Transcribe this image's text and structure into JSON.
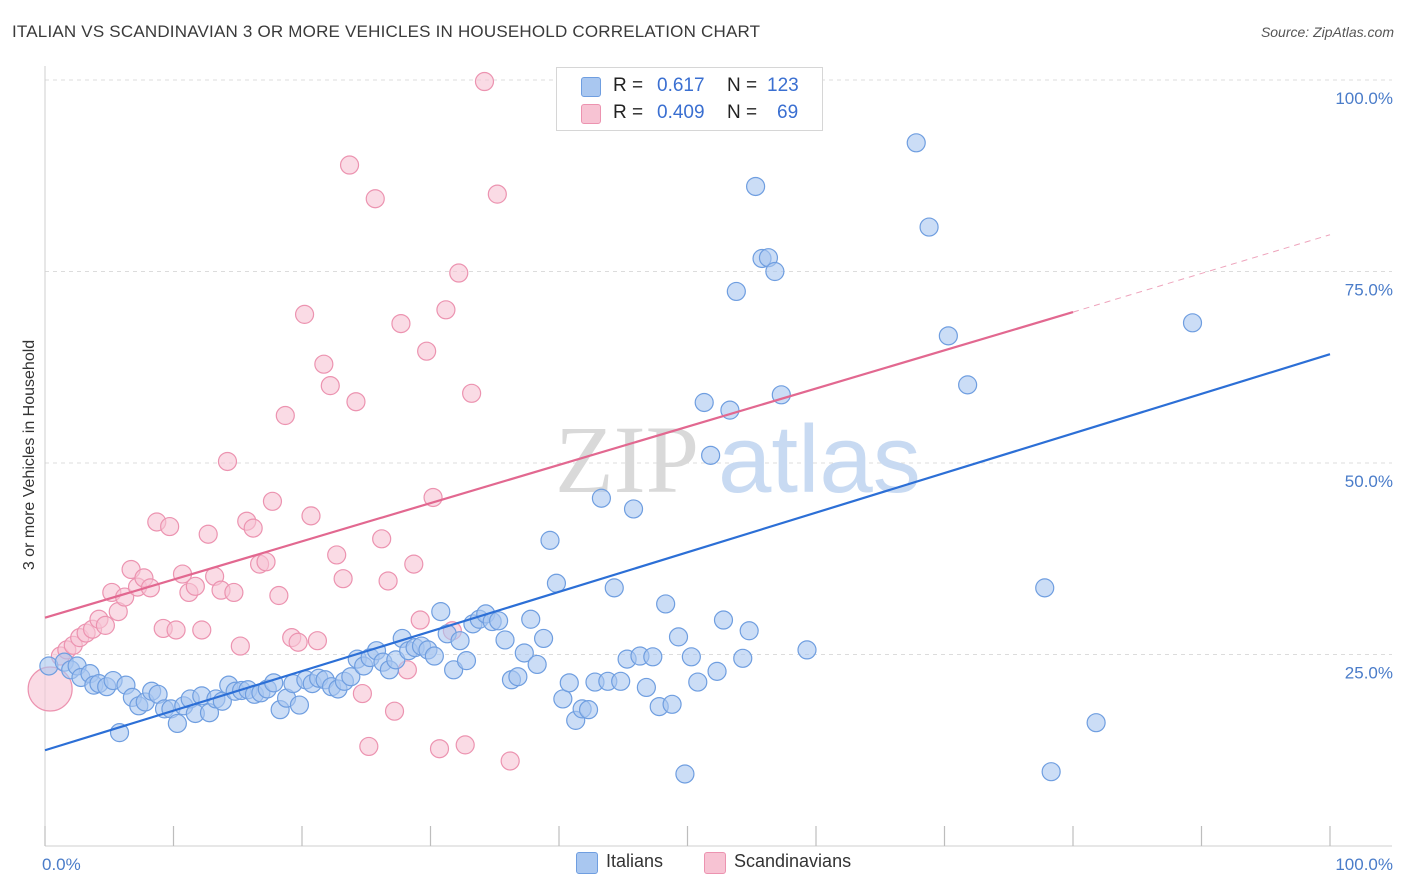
{
  "title": "ITALIAN VS SCANDINAVIAN 3 OR MORE VEHICLES IN HOUSEHOLD CORRELATION CHART",
  "source": "Source: ZipAtlas.com",
  "watermark": {
    "zip": "ZIP",
    "atlas": "atlas"
  },
  "legend": {
    "italians": {
      "r_label": "R =",
      "r_value": "0.617",
      "n_label": "N =",
      "n_value": "123"
    },
    "scandinavians": {
      "r_label": "R =",
      "r_value": "0.409",
      "n_label": "N =",
      "n_value": "69"
    }
  },
  "colors": {
    "italians_fill": "#a9c7f0",
    "italians_stroke": "#6f9ee0",
    "italians_line": "#2c6fd6",
    "scandinavians_fill": "#f7c3d3",
    "scandinavians_stroke": "#ec93b0",
    "scandinavians_line": "#e26890",
    "tick_color": "#4a7cc9",
    "grid": "#dcdcdc"
  },
  "chart_data": {
    "type": "scatter",
    "title": "ITALIAN VS SCANDINAVIAN 3 OR MORE VEHICLES IN HOUSEHOLD CORRELATION CHART",
    "xlabel": "",
    "ylabel": "3 or more Vehicles in Household",
    "xlim": [
      0,
      100
    ],
    "ylim": [
      0,
      100
    ],
    "x_tick_labels": [
      "0.0%",
      "100.0%"
    ],
    "y_ticks": [
      25,
      50,
      75,
      100
    ],
    "y_tick_labels": [
      "25.0%",
      "50.0%",
      "75.0%",
      "100.0%"
    ],
    "grid": true,
    "legend_position": "top-center",
    "series": [
      {
        "name": "Italians",
        "trend": {
          "x": [
            0,
            100
          ],
          "y": [
            12.5,
            64.2
          ]
        },
        "points": [
          [
            0.3,
            23.5
          ],
          [
            1.5,
            24.0
          ],
          [
            2.0,
            23.0
          ],
          [
            2.5,
            23.5
          ],
          [
            2.8,
            22.0
          ],
          [
            3.5,
            22.5
          ],
          [
            3.8,
            21.0
          ],
          [
            4.2,
            21.2
          ],
          [
            4.8,
            20.8
          ],
          [
            5.3,
            21.6
          ],
          [
            5.8,
            14.8
          ],
          [
            6.3,
            21.0
          ],
          [
            6.8,
            19.4
          ],
          [
            7.3,
            18.3
          ],
          [
            7.8,
            18.8
          ],
          [
            8.3,
            20.2
          ],
          [
            8.8,
            19.8
          ],
          [
            9.3,
            17.9
          ],
          [
            9.8,
            17.9
          ],
          [
            10.3,
            16.0
          ],
          [
            10.8,
            18.3
          ],
          [
            11.3,
            19.2
          ],
          [
            11.7,
            17.3
          ],
          [
            12.2,
            19.6
          ],
          [
            12.8,
            17.4
          ],
          [
            13.3,
            19.2
          ],
          [
            13.8,
            18.9
          ],
          [
            14.3,
            21.0
          ],
          [
            14.8,
            20.2
          ],
          [
            15.3,
            20.3
          ],
          [
            15.8,
            20.4
          ],
          [
            16.3,
            19.8
          ],
          [
            16.8,
            20.0
          ],
          [
            17.3,
            20.5
          ],
          [
            17.8,
            21.3
          ],
          [
            18.3,
            17.8
          ],
          [
            18.8,
            19.3
          ],
          [
            19.3,
            21.2
          ],
          [
            19.8,
            18.4
          ],
          [
            20.3,
            21.7
          ],
          [
            20.8,
            21.2
          ],
          [
            21.3,
            21.9
          ],
          [
            21.8,
            21.7
          ],
          [
            22.3,
            20.8
          ],
          [
            22.8,
            20.5
          ],
          [
            23.3,
            21.5
          ],
          [
            23.8,
            22.1
          ],
          [
            24.3,
            24.4
          ],
          [
            24.8,
            23.5
          ],
          [
            25.3,
            24.6
          ],
          [
            25.8,
            25.5
          ],
          [
            26.3,
            24.0
          ],
          [
            26.8,
            23.0
          ],
          [
            27.3,
            24.3
          ],
          [
            27.8,
            27.1
          ],
          [
            28.3,
            25.5
          ],
          [
            28.8,
            25.9
          ],
          [
            29.3,
            26.1
          ],
          [
            29.8,
            25.6
          ],
          [
            30.3,
            24.8
          ],
          [
            30.8,
            30.6
          ],
          [
            31.3,
            27.7
          ],
          [
            31.8,
            23.0
          ],
          [
            32.3,
            26.8
          ],
          [
            32.8,
            24.2
          ],
          [
            33.3,
            29.0
          ],
          [
            33.8,
            29.6
          ],
          [
            34.3,
            30.3
          ],
          [
            34.8,
            29.3
          ],
          [
            35.3,
            29.4
          ],
          [
            35.8,
            26.9
          ],
          [
            36.3,
            21.7
          ],
          [
            36.8,
            22.1
          ],
          [
            37.3,
            25.2
          ],
          [
            37.8,
            29.6
          ],
          [
            38.3,
            23.7
          ],
          [
            38.8,
            27.1
          ],
          [
            39.3,
            39.9
          ],
          [
            39.8,
            34.3
          ],
          [
            40.3,
            19.2
          ],
          [
            40.8,
            21.3
          ],
          [
            41.3,
            16.4
          ],
          [
            41.8,
            17.9
          ],
          [
            42.3,
            17.8
          ],
          [
            42.8,
            21.4
          ],
          [
            43.3,
            45.4
          ],
          [
            43.8,
            21.5
          ],
          [
            44.3,
            33.7
          ],
          [
            44.8,
            21.5
          ],
          [
            45.3,
            24.4
          ],
          [
            45.8,
            44.0
          ],
          [
            46.3,
            24.8
          ],
          [
            46.8,
            20.7
          ],
          [
            47.3,
            24.7
          ],
          [
            47.8,
            18.2
          ],
          [
            48.3,
            31.6
          ],
          [
            48.8,
            18.5
          ],
          [
            49.3,
            27.3
          ],
          [
            49.8,
            9.4
          ],
          [
            50.3,
            24.7
          ],
          [
            50.8,
            21.4
          ],
          [
            51.3,
            57.9
          ],
          [
            51.8,
            51.0
          ],
          [
            52.3,
            22.8
          ],
          [
            52.8,
            29.5
          ],
          [
            53.3,
            56.9
          ],
          [
            53.8,
            72.4
          ],
          [
            54.3,
            24.5
          ],
          [
            54.8,
            28.1
          ],
          [
            55.3,
            86.1
          ],
          [
            55.8,
            76.7
          ],
          [
            56.3,
            76.8
          ],
          [
            56.8,
            75.0
          ],
          [
            57.3,
            58.9
          ],
          [
            59.3,
            25.6
          ],
          [
            67.8,
            91.8
          ],
          [
            68.8,
            80.8
          ],
          [
            70.3,
            66.6
          ],
          [
            71.8,
            60.2
          ],
          [
            77.8,
            33.7
          ],
          [
            78.3,
            9.7
          ],
          [
            81.8,
            16.1
          ],
          [
            89.3,
            68.3
          ]
        ]
      },
      {
        "name": "Scandinavians",
        "trend": {
          "x": [
            0,
            80
          ],
          "y": [
            29.8,
            69.7
          ]
        },
        "trend_dashed": {
          "x": [
            80,
            100
          ],
          "y": [
            69.7,
            79.8
          ]
        },
        "points": [
          [
            0.4,
            20.5
          ],
          [
            1.2,
            24.8
          ],
          [
            1.7,
            25.6
          ],
          [
            2.2,
            26.2
          ],
          [
            2.7,
            27.2
          ],
          [
            3.2,
            27.8
          ],
          [
            3.7,
            28.3
          ],
          [
            4.2,
            29.6
          ],
          [
            4.7,
            28.8
          ],
          [
            5.2,
            33.1
          ],
          [
            5.7,
            30.6
          ],
          [
            6.2,
            32.5
          ],
          [
            6.7,
            36.1
          ],
          [
            7.2,
            33.8
          ],
          [
            7.7,
            35.0
          ],
          [
            8.2,
            33.7
          ],
          [
            8.7,
            42.3
          ],
          [
            9.2,
            28.4
          ],
          [
            9.7,
            41.7
          ],
          [
            10.2,
            28.2
          ],
          [
            10.7,
            35.5
          ],
          [
            11.2,
            33.1
          ],
          [
            11.7,
            33.9
          ],
          [
            12.2,
            28.2
          ],
          [
            12.7,
            40.7
          ],
          [
            13.2,
            35.2
          ],
          [
            13.7,
            33.4
          ],
          [
            14.2,
            50.2
          ],
          [
            14.7,
            33.1
          ],
          [
            15.2,
            26.1
          ],
          [
            15.7,
            42.4
          ],
          [
            16.2,
            41.5
          ],
          [
            16.7,
            36.8
          ],
          [
            17.2,
            37.1
          ],
          [
            17.7,
            45.0
          ],
          [
            18.2,
            32.7
          ],
          [
            18.7,
            56.2
          ],
          [
            19.2,
            27.2
          ],
          [
            19.7,
            26.6
          ],
          [
            20.2,
            69.4
          ],
          [
            20.7,
            43.1
          ],
          [
            21.2,
            26.8
          ],
          [
            21.7,
            62.9
          ],
          [
            22.2,
            60.1
          ],
          [
            22.7,
            38.0
          ],
          [
            23.2,
            34.9
          ],
          [
            23.7,
            88.9
          ],
          [
            24.2,
            58.0
          ],
          [
            24.7,
            19.9
          ],
          [
            25.2,
            13.0
          ],
          [
            25.7,
            84.5
          ],
          [
            26.2,
            40.1
          ],
          [
            26.7,
            34.6
          ],
          [
            27.2,
            17.6
          ],
          [
            27.7,
            68.2
          ],
          [
            28.2,
            23.0
          ],
          [
            28.7,
            36.8
          ],
          [
            29.2,
            29.5
          ],
          [
            29.7,
            64.6
          ],
          [
            30.2,
            45.5
          ],
          [
            30.7,
            12.7
          ],
          [
            31.2,
            70.0
          ],
          [
            31.7,
            28.1
          ],
          [
            32.2,
            74.8
          ],
          [
            32.7,
            13.2
          ],
          [
            33.2,
            59.1
          ],
          [
            34.2,
            99.8
          ],
          [
            35.2,
            85.1
          ],
          [
            36.2,
            11.1
          ]
        ]
      }
    ]
  }
}
